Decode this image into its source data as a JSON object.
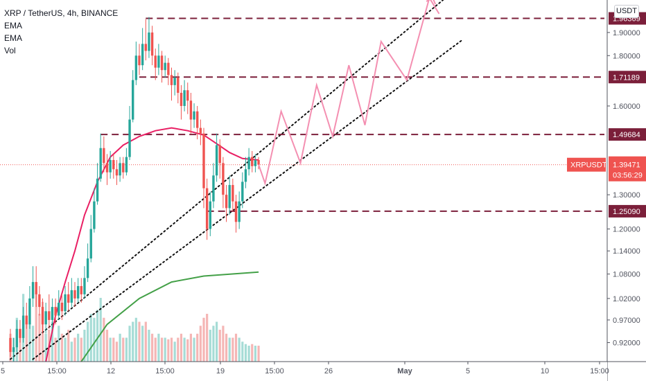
{
  "legend": {
    "title": "XRP / TetherUS, 4h, BINANCE",
    "indicators": [
      "EMA",
      "EMA",
      "Vol"
    ]
  },
  "currency_button": "USDT",
  "colors": {
    "up": "#26a69a",
    "down": "#ef5350",
    "vol_up": "#a6dcd6",
    "vol_down": "#f5b6b5",
    "ema_fast": "#e91e63",
    "ema_slow": "#43a047",
    "level_line": "#7b1f3a",
    "projection": "#f48fb1",
    "current_price": "#ef5350",
    "text": "#131722",
    "axis_text": "#50535e"
  },
  "chart_data": {
    "type": "candlestick",
    "symbol": "XRPUSDT",
    "interval": "4h",
    "exchange": "BINANCE",
    "y_axis": {
      "scale": "log",
      "range": [
        0.88,
        2.05
      ],
      "ticks": [
        "1.90000",
        "1.80000",
        "1.60000",
        "1.30000",
        "1.20000",
        "1.14000",
        "1.08000",
        "1.02000",
        "0.97000",
        "0.92000"
      ]
    },
    "x_axis": {
      "ticks": [
        "5",
        "15:00",
        "12",
        "15:00",
        "19",
        "15:00",
        "26",
        "May",
        "5",
        "10",
        "15:00"
      ]
    },
    "horizontal_levels": [
      {
        "label": "1.96369",
        "value": 1.96369
      },
      {
        "label": "1.71189",
        "value": 1.71189
      },
      {
        "label": "1.49684",
        "value": 1.49684
      },
      {
        "label": "1.25090",
        "value": 1.2509
      }
    ],
    "current_price": {
      "symbol": "XRPUSDT",
      "value": "1.39471",
      "countdown": "03:56:29",
      "y": 1.39471
    },
    "candles": [
      [
        0.93,
        0.9,
        0.95,
        0.89
      ],
      [
        0.9,
        0.91,
        0.93,
        0.88
      ],
      [
        0.91,
        0.95,
        0.97,
        0.9
      ],
      [
        0.95,
        0.93,
        0.97,
        0.92
      ],
      [
        0.93,
        0.98,
        1.0,
        0.92
      ],
      [
        0.98,
        0.96,
        1.01,
        0.95
      ],
      [
        0.96,
        1.02,
        1.05,
        0.95
      ],
      [
        1.02,
        1.06,
        1.1,
        1.0
      ],
      [
        1.06,
        1.03,
        1.1,
        1.0
      ],
      [
        1.03,
        1.0,
        1.05,
        0.98
      ],
      [
        1.0,
        0.96,
        1.02,
        0.94
      ],
      [
        0.96,
        0.99,
        1.01,
        0.94
      ],
      [
        0.99,
        0.97,
        1.03,
        0.95
      ],
      [
        0.97,
        1.0,
        1.02,
        0.95
      ],
      [
        1.0,
        0.98,
        1.02,
        0.96
      ],
      [
        0.98,
        1.01,
        1.04,
        0.97
      ],
      [
        1.01,
        0.99,
        1.03,
        0.97
      ],
      [
        0.99,
        1.03,
        1.05,
        0.98
      ],
      [
        1.03,
        1.01,
        1.06,
        0.99
      ],
      [
        1.01,
        1.04,
        1.07,
        1.0
      ],
      [
        1.04,
        1.02,
        1.06,
        1.0
      ],
      [
        1.02,
        1.05,
        1.07,
        1.01
      ],
      [
        1.05,
        1.03,
        1.07,
        1.01
      ],
      [
        1.03,
        1.07,
        1.1,
        1.02
      ],
      [
        1.07,
        1.12,
        1.16,
        1.06
      ],
      [
        1.12,
        1.2,
        1.24,
        1.11
      ],
      [
        1.2,
        1.28,
        1.32,
        1.19
      ],
      [
        1.28,
        1.35,
        1.4,
        1.27
      ],
      [
        1.35,
        1.45,
        1.5,
        1.34
      ],
      [
        1.45,
        1.4,
        1.49,
        1.37
      ],
      [
        1.4,
        1.37,
        1.43,
        1.33
      ],
      [
        1.37,
        1.41,
        1.44,
        1.35
      ],
      [
        1.41,
        1.38,
        1.43,
        1.35
      ],
      [
        1.38,
        1.36,
        1.41,
        1.33
      ],
      [
        1.36,
        1.4,
        1.42,
        1.34
      ],
      [
        1.4,
        1.37,
        1.42,
        1.35
      ],
      [
        1.37,
        1.42,
        1.45,
        1.36
      ],
      [
        1.42,
        1.55,
        1.6,
        1.41
      ],
      [
        1.55,
        1.7,
        1.74,
        1.54
      ],
      [
        1.7,
        1.8,
        1.86,
        1.68
      ],
      [
        1.8,
        1.76,
        1.85,
        1.72
      ],
      [
        1.76,
        1.85,
        1.92,
        1.74
      ],
      [
        1.85,
        1.82,
        1.96,
        1.78
      ],
      [
        1.82,
        1.9,
        1.97,
        1.79
      ],
      [
        1.9,
        1.8,
        1.93,
        1.76
      ],
      [
        1.8,
        1.75,
        1.83,
        1.7
      ],
      [
        1.75,
        1.8,
        1.85,
        1.72
      ],
      [
        1.8,
        1.74,
        1.82,
        1.69
      ],
      [
        1.74,
        1.77,
        1.8,
        1.71
      ],
      [
        1.77,
        1.72,
        1.79,
        1.68
      ],
      [
        1.72,
        1.68,
        1.75,
        1.62
      ],
      [
        1.68,
        1.71,
        1.74,
        1.64
      ],
      [
        1.71,
        1.65,
        1.73,
        1.61
      ],
      [
        1.65,
        1.6,
        1.68,
        1.55
      ],
      [
        1.6,
        1.66,
        1.7,
        1.58
      ],
      [
        1.66,
        1.62,
        1.69,
        1.57
      ],
      [
        1.62,
        1.55,
        1.65,
        1.5
      ],
      [
        1.55,
        1.58,
        1.61,
        1.52
      ],
      [
        1.58,
        1.52,
        1.6,
        1.48
      ],
      [
        1.52,
        1.5,
        1.55,
        1.46
      ],
      [
        1.5,
        1.32,
        1.52,
        1.26
      ],
      [
        1.32,
        1.2,
        1.35,
        1.17
      ],
      [
        1.2,
        1.28,
        1.31,
        1.18
      ],
      [
        1.28,
        1.36,
        1.4,
        1.26
      ],
      [
        1.36,
        1.46,
        1.5,
        1.34
      ],
      [
        1.46,
        1.4,
        1.48,
        1.35
      ],
      [
        1.4,
        1.3,
        1.42,
        1.26
      ],
      [
        1.3,
        1.26,
        1.33,
        1.22
      ],
      [
        1.26,
        1.33,
        1.36,
        1.24
      ],
      [
        1.33,
        1.28,
        1.35,
        1.25
      ],
      [
        1.28,
        1.22,
        1.3,
        1.19
      ],
      [
        1.22,
        1.28,
        1.31,
        1.2
      ],
      [
        1.28,
        1.34,
        1.37,
        1.26
      ],
      [
        1.34,
        1.38,
        1.42,
        1.32
      ],
      [
        1.38,
        1.42,
        1.45,
        1.36
      ],
      [
        1.42,
        1.39,
        1.44,
        1.37
      ],
      [
        1.39,
        1.41,
        1.43,
        1.37
      ],
      [
        1.41,
        1.395,
        1.42,
        1.38
      ]
    ],
    "volume": [
      0.35,
      0.3,
      0.55,
      0.4,
      0.85,
      0.5,
      0.7,
      0.45,
      1.0,
      0.6,
      0.75,
      0.35,
      0.4,
      0.5,
      0.3,
      0.45,
      0.35,
      0.3,
      0.4,
      0.25,
      0.3,
      0.35,
      0.3,
      0.4,
      0.5,
      0.6,
      0.55,
      0.65,
      0.8,
      0.55,
      0.4,
      0.3,
      0.3,
      0.25,
      0.35,
      0.3,
      0.3,
      0.45,
      0.5,
      0.55,
      0.5,
      0.45,
      0.5,
      0.4,
      0.35,
      0.3,
      0.35,
      0.3,
      0.3,
      0.28,
      0.3,
      0.25,
      0.3,
      0.35,
      0.3,
      0.28,
      0.35,
      0.3,
      0.35,
      0.45,
      0.55,
      0.6,
      0.4,
      0.45,
      0.5,
      0.4,
      0.45,
      0.35,
      0.3,
      0.3,
      0.35,
      0.3,
      0.25,
      0.22,
      0.2,
      0.22,
      0.2,
      0.2
    ],
    "ema_fast": [
      [
        11,
        0.88
      ],
      [
        14,
        0.98
      ],
      [
        17,
        1.06
      ],
      [
        20,
        1.14
      ],
      [
        23,
        1.24
      ],
      [
        27,
        1.34
      ],
      [
        31,
        1.42
      ],
      [
        35,
        1.46
      ],
      [
        40,
        1.49
      ],
      [
        45,
        1.51
      ],
      [
        50,
        1.52
      ],
      [
        55,
        1.51
      ],
      [
        60,
        1.495
      ],
      [
        64,
        1.465
      ],
      [
        68,
        1.435
      ],
      [
        72,
        1.415
      ],
      [
        77,
        1.41
      ]
    ],
    "ema_slow": [
      [
        22,
        0.88
      ],
      [
        30,
        0.96
      ],
      [
        40,
        1.02
      ],
      [
        50,
        1.06
      ],
      [
        60,
        1.075
      ],
      [
        77,
        1.085
      ]
    ],
    "trendlines": [
      {
        "from": [
          0,
          0.885
        ],
        "to": [
          135,
          2.06
        ]
      },
      {
        "from": [
          7,
          0.885
        ],
        "to": [
          140,
          1.865
        ]
      }
    ],
    "projection": [
      [
        77,
        1.395
      ],
      [
        79,
        1.335
      ],
      [
        84,
        1.58
      ],
      [
        90,
        1.4
      ],
      [
        95,
        1.68
      ],
      [
        100,
        1.49
      ],
      [
        105,
        1.76
      ],
      [
        110,
        1.53
      ],
      [
        115,
        1.86
      ],
      [
        123,
        1.7
      ],
      [
        130,
        2.06
      ],
      [
        133,
        1.985
      ]
    ],
    "projection_arrow_tip": [
      131,
      2.06
    ],
    "level_segments": [
      {
        "value": 1.96369,
        "from": 42,
        "to": 193
      },
      {
        "value": 1.71189,
        "from": 40,
        "to": 193
      },
      {
        "value": 1.49684,
        "from": 28,
        "to": 193
      },
      {
        "value": 1.2509,
        "from": 61,
        "to": 193
      }
    ]
  }
}
